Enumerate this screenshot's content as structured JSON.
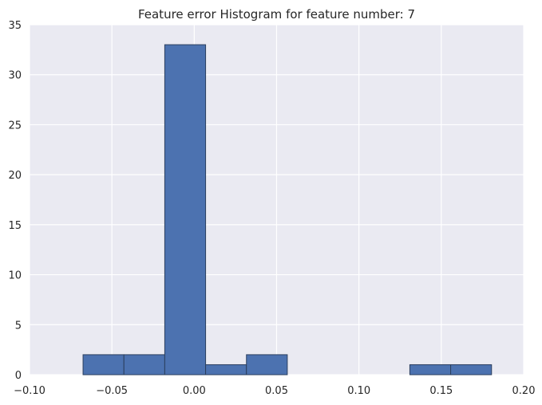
{
  "chart_data": {
    "type": "bar",
    "title": "Feature error Histogram for feature number: 7",
    "xlabel": "",
    "ylabel": "",
    "xlim": [
      -0.1,
      0.2
    ],
    "ylim": [
      0,
      35
    ],
    "x_ticks": [
      -0.1,
      -0.05,
      0.0,
      0.05,
      0.1,
      0.15,
      0.2
    ],
    "x_tick_labels": [
      "−0.10",
      "−0.05",
      "0.00",
      "0.05",
      "0.10",
      "0.15",
      "0.20"
    ],
    "y_ticks": [
      0,
      5,
      10,
      15,
      20,
      25,
      30,
      35
    ],
    "y_tick_labels": [
      "0",
      "5",
      "10",
      "15",
      "20",
      "25",
      "30",
      "35"
    ],
    "bins": [
      {
        "x0": -0.0675,
        "x1": -0.0427,
        "count": 2
      },
      {
        "x0": -0.0427,
        "x1": -0.0179,
        "count": 2
      },
      {
        "x0": -0.0179,
        "x1": 0.0069,
        "count": 33
      },
      {
        "x0": 0.0069,
        "x1": 0.0317,
        "count": 1
      },
      {
        "x0": 0.0317,
        "x1": 0.0565,
        "count": 2
      },
      {
        "x0": 0.0565,
        "x1": 0.0813,
        "count": 0
      },
      {
        "x0": 0.0813,
        "x1": 0.1061,
        "count": 0
      },
      {
        "x0": 0.1061,
        "x1": 0.1309,
        "count": 0
      },
      {
        "x0": 0.1309,
        "x1": 0.1557,
        "count": 1
      },
      {
        "x0": 0.1557,
        "x1": 0.1805,
        "count": 1
      }
    ],
    "grid": true,
    "colors": {
      "background": "#EAEAF2",
      "bar_fill": "#4C72B0",
      "bar_edge": "#2B3F5E",
      "grid": "#FFFFFF"
    }
  }
}
